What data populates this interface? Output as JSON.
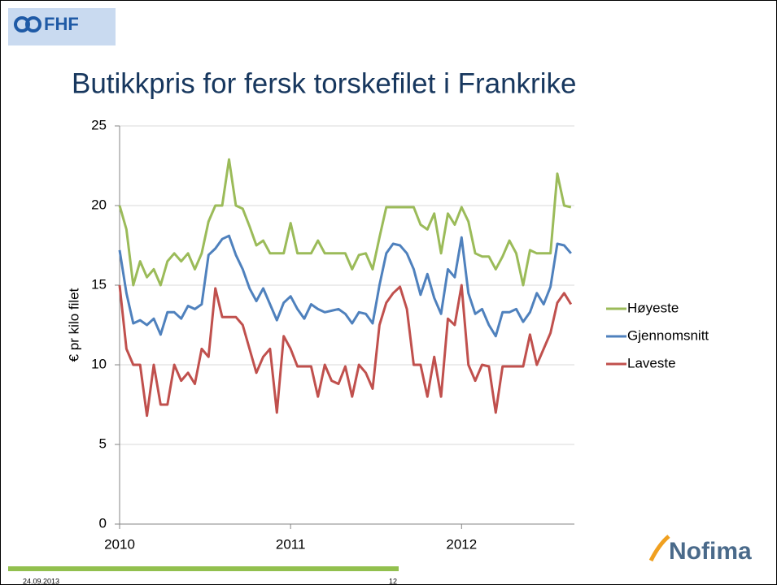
{
  "logo": "FHF",
  "footer": {
    "date": "24.09.2013",
    "page": "12"
  },
  "brand": "Nofima",
  "chart_data": {
    "type": "line",
    "title": "Butikkpris for fersk torskefilet i Frankrike",
    "y_label": "€ pr kilo filet",
    "x": [
      2010,
      2010.04,
      2010.08,
      2010.12,
      2010.16,
      2010.2,
      2010.24,
      2010.28,
      2010.32,
      2010.36,
      2010.4,
      2010.44,
      2010.48,
      2010.52,
      2010.56,
      2010.6,
      2010.64,
      2010.68,
      2010.72,
      2010.76,
      2010.8,
      2010.84,
      2010.88,
      2010.92,
      2010.96,
      2011,
      2011.04,
      2011.08,
      2011.12,
      2011.16,
      2011.2,
      2011.24,
      2011.28,
      2011.32,
      2011.36,
      2011.4,
      2011.44,
      2011.48,
      2011.52,
      2011.56,
      2011.6,
      2011.64,
      2011.68,
      2011.72,
      2011.76,
      2011.8,
      2011.84,
      2011.88,
      2011.92,
      2011.96,
      2012,
      2012.04,
      2012.08,
      2012.12,
      2012.16,
      2012.2,
      2012.24,
      2012.28,
      2012.32,
      2012.36,
      2012.4,
      2012.44,
      2012.48,
      2012.52,
      2012.56,
      2012.6,
      2012.64
    ],
    "series": [
      {
        "name": "Høyeste",
        "color": "#9bbb59",
        "values": [
          20,
          18.5,
          15,
          16.5,
          15.5,
          16,
          15,
          16.5,
          17,
          16.5,
          17,
          16,
          17,
          19,
          20,
          20,
          22.9,
          20,
          19.8,
          18.7,
          17.5,
          17.8,
          17,
          17,
          17,
          18.9,
          17,
          17,
          17,
          17.8,
          17,
          17,
          17,
          17,
          16,
          16.9,
          17,
          16,
          18,
          19.9,
          19.9,
          19.9,
          19.9,
          19.9,
          18.8,
          18.5,
          19.5,
          17,
          19.5,
          18.8,
          19.9,
          19,
          17,
          16.8,
          16.8,
          16,
          16.8,
          17.8,
          17,
          15,
          17.2,
          17,
          17,
          17,
          22,
          20,
          19.9
        ]
      },
      {
        "name": "Gjennomsnitt",
        "color": "#4f81bd",
        "values": [
          17.2,
          14.5,
          12.6,
          12.8,
          12.5,
          12.9,
          11.9,
          13.3,
          13.3,
          12.9,
          13.7,
          13.5,
          13.8,
          16.9,
          17.3,
          17.9,
          18.1,
          16.9,
          16,
          14.8,
          14,
          14.8,
          13.8,
          12.8,
          13.9,
          14.3,
          13.5,
          12.9,
          13.8,
          13.5,
          13.3,
          13.4,
          13.5,
          13.2,
          12.6,
          13.3,
          13.2,
          12.6,
          15,
          17,
          17.6,
          17.5,
          17,
          16,
          14.4,
          15.7,
          14.2,
          13.2,
          16,
          15.5,
          18,
          14.5,
          13.2,
          13.5,
          12.5,
          11.8,
          13.3,
          13.3,
          13.5,
          12.7,
          13.3,
          14.5,
          13.8,
          14.9,
          17.6,
          17.5,
          17
        ]
      },
      {
        "name": "Laveste",
        "color": "#c0504d",
        "values": [
          15,
          11,
          10,
          10,
          6.8,
          10,
          7.5,
          7.5,
          10,
          9,
          9.5,
          8.8,
          11,
          10.5,
          14.8,
          13,
          13,
          13,
          12.5,
          11,
          9.5,
          10.5,
          11,
          7,
          11.8,
          11,
          9.9,
          9.9,
          9.9,
          8,
          10,
          9,
          8.8,
          9.9,
          8,
          10,
          9.5,
          8.5,
          12.5,
          13.9,
          14.5,
          14.9,
          13.5,
          10,
          10,
          8,
          10.5,
          8,
          12.9,
          12.5,
          15,
          10,
          9,
          10,
          9.9,
          7,
          9.9,
          9.9,
          9.9,
          9.9,
          11.9,
          10,
          11,
          12,
          13.9,
          14.5,
          13.8
        ]
      }
    ],
    "xlim": [
      2010,
      2012.66
    ],
    "xticks": [
      2010,
      2011,
      2012
    ],
    "ylim": [
      0,
      25
    ],
    "yticks": [
      0,
      5,
      10,
      15,
      20,
      25
    ],
    "grid": true,
    "legend": "right"
  }
}
